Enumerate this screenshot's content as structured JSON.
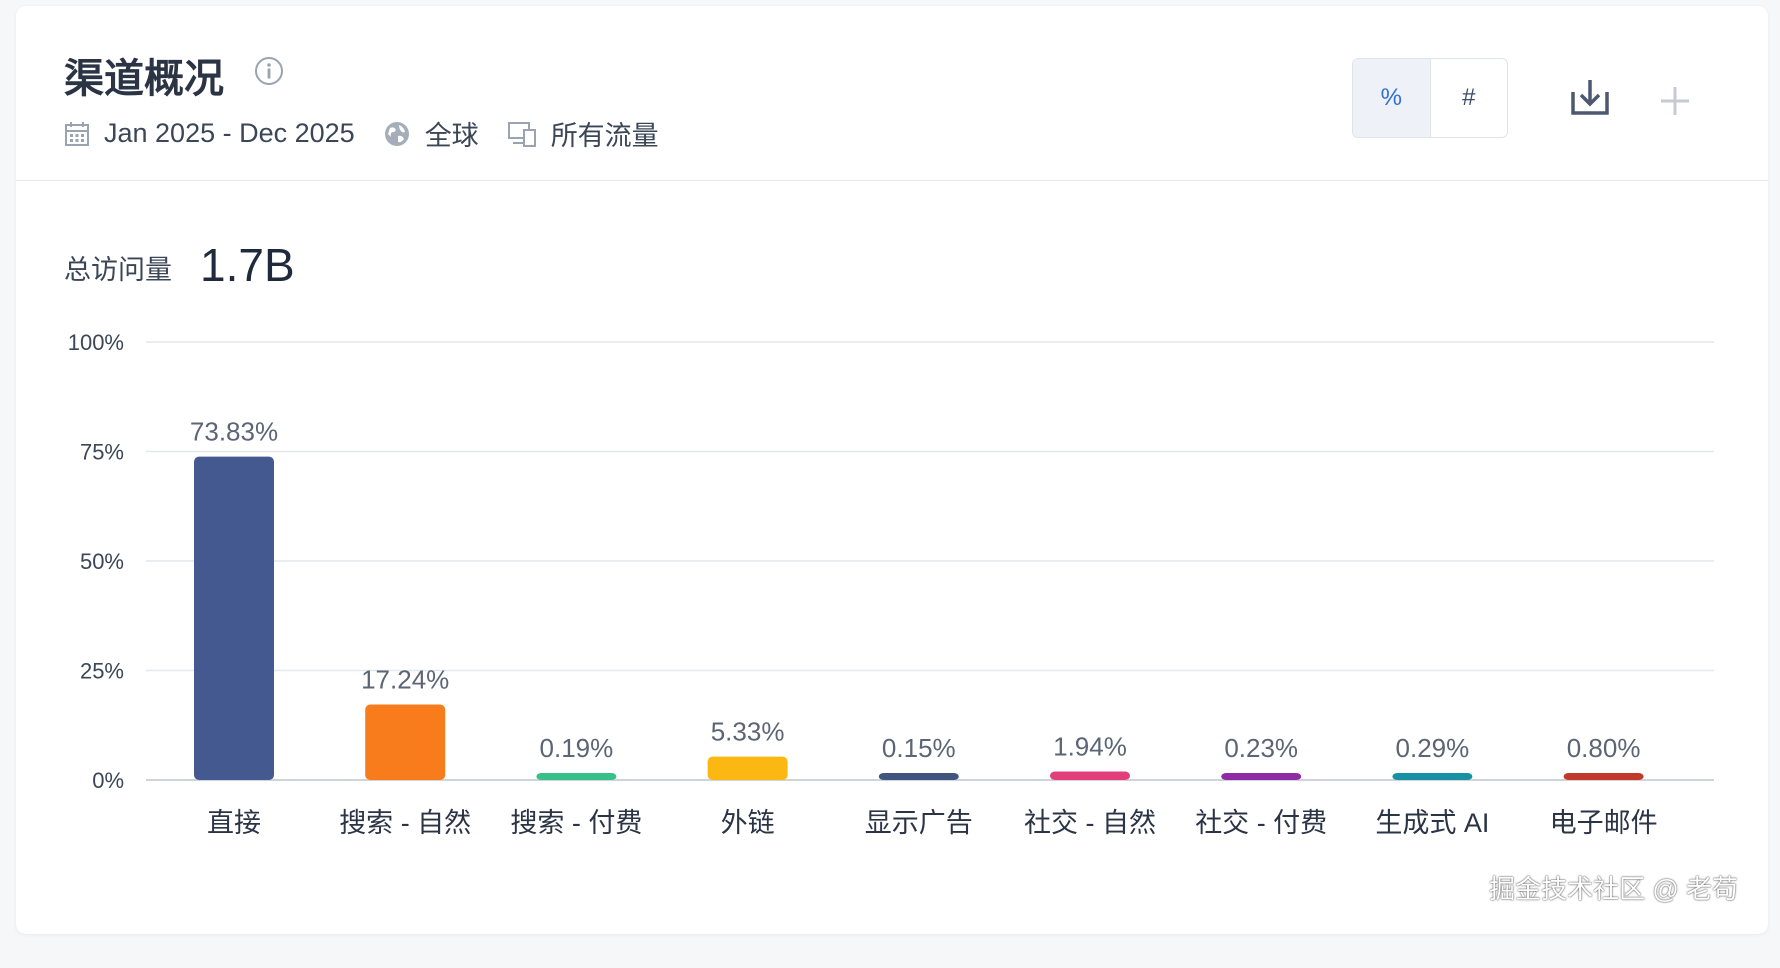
{
  "header": {
    "title": "渠道概况",
    "date_range": "Jan 2025 - Dec 2025",
    "region": "全球",
    "traffic_type": "所有流量",
    "toggle": {
      "percent": "%",
      "count": "#",
      "active": "percent"
    }
  },
  "summary": {
    "label": "总访问量",
    "value": "1.7B"
  },
  "icons": [
    "info-icon",
    "calendar-icon",
    "globe-icon",
    "devices-icon",
    "download-icon",
    "plus-icon"
  ],
  "chart_data": {
    "type": "bar",
    "categories": [
      "直接",
      "搜索 - 自然",
      "搜索 - 付费",
      "外链",
      "显示广告",
      "社交 - 自然",
      "社交 - 付费",
      "生成式 AI",
      "电子邮件"
    ],
    "values": [
      73.83,
      17.24,
      0.19,
      5.33,
      0.15,
      1.94,
      0.23,
      0.29,
      0.8
    ],
    "value_labels": [
      "73.83%",
      "17.24%",
      "0.19%",
      "5.33%",
      "0.15%",
      "1.94%",
      "0.23%",
      "0.29%",
      "0.80%"
    ],
    "colors": [
      "#44598f",
      "#f97c1c",
      "#37c08a",
      "#fbb813",
      "#41537f",
      "#e23f7a",
      "#8e2aa3",
      "#1891a5",
      "#c0392b"
    ],
    "ylim": [
      0,
      100
    ],
    "yticks": [
      "0%",
      "25%",
      "50%",
      "75%",
      "100%"
    ],
    "ytick_values": [
      0,
      25,
      50,
      75,
      100
    ],
    "grid": true,
    "legend": "none"
  },
  "watermark": "掘金技术社区 @ 老苟"
}
